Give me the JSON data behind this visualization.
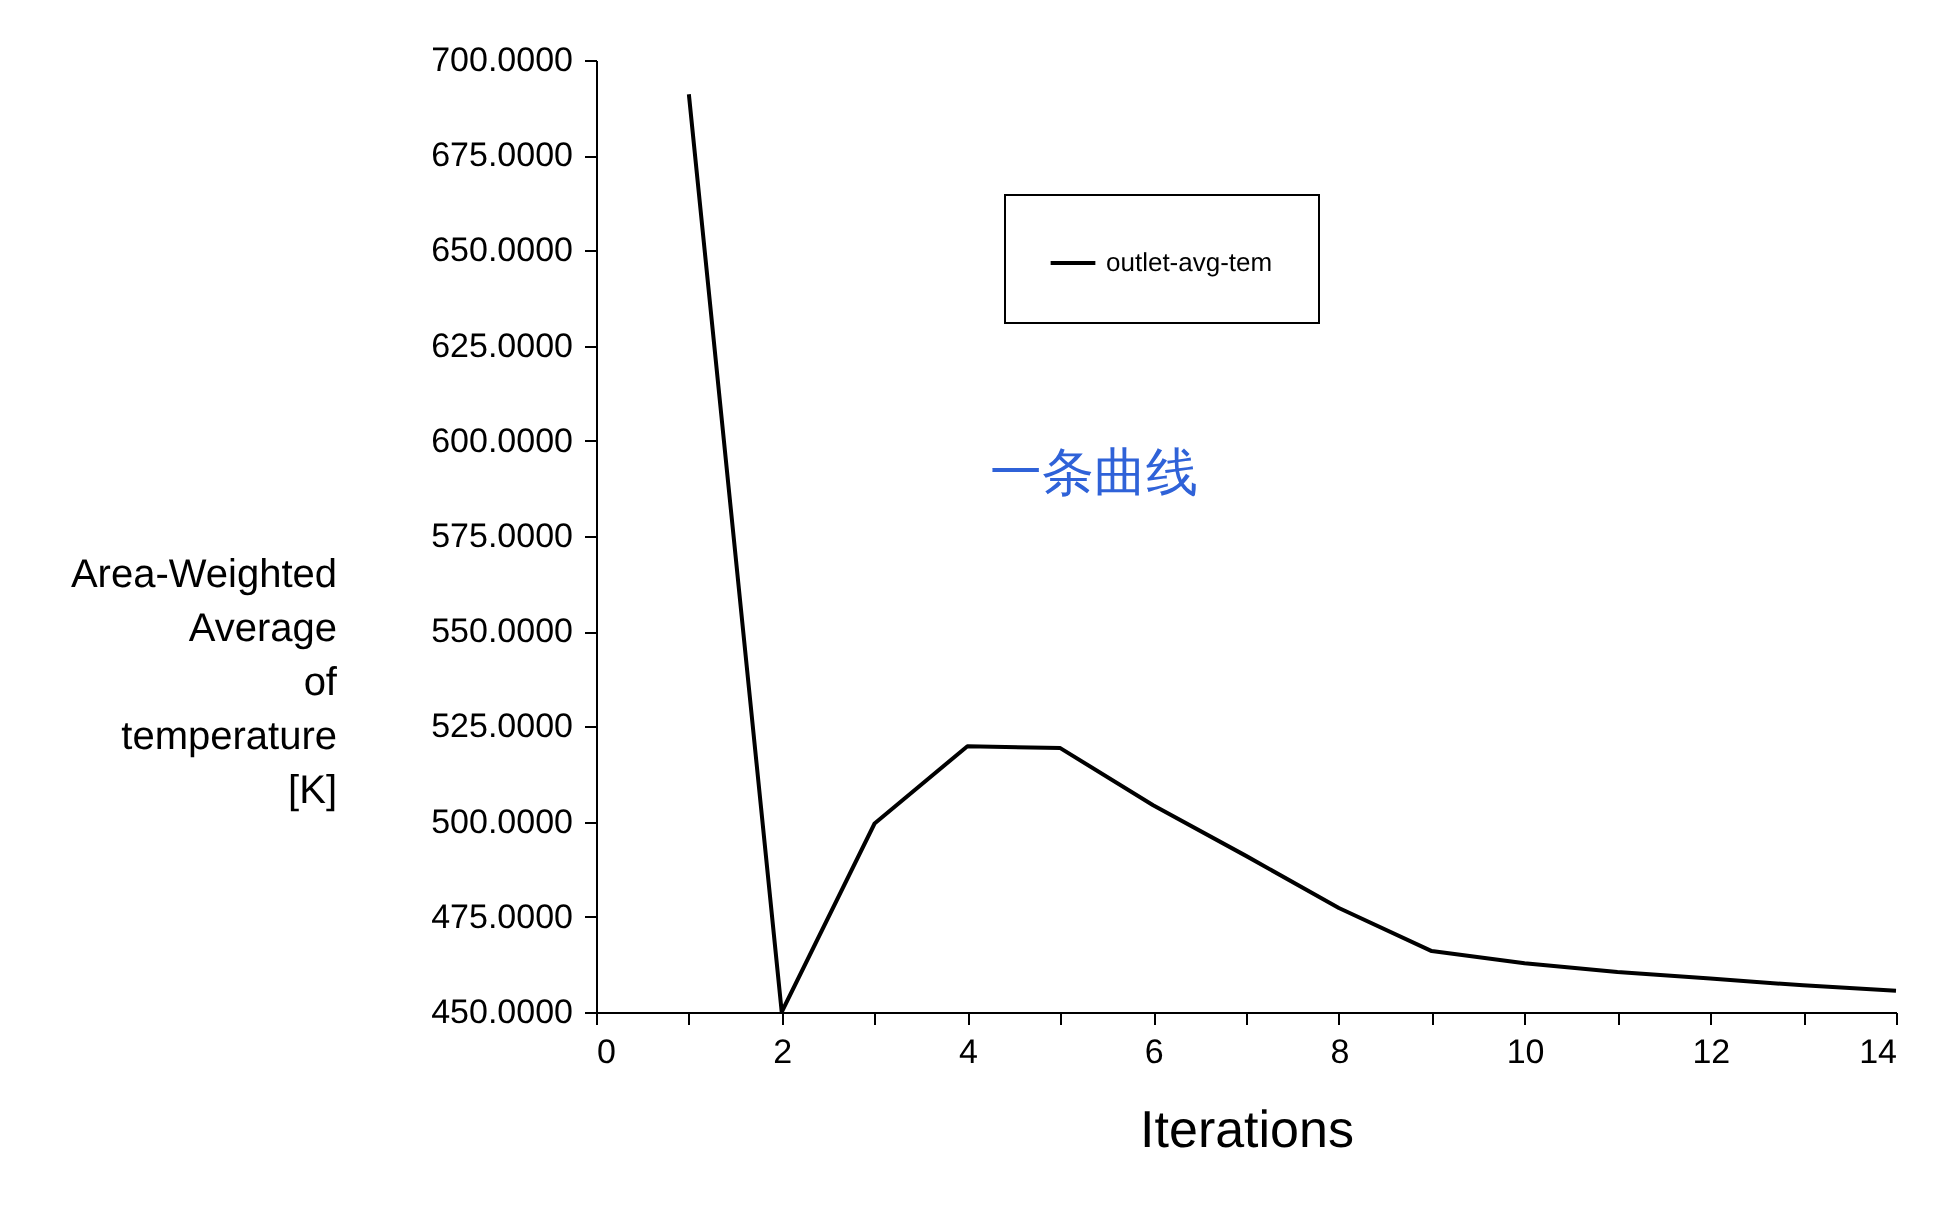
{
  "chart_data": {
    "type": "line",
    "xlabel": "Iterations",
    "ylabel": "Area-Weighted Average of temperature [K]",
    "annotations": [
      "一条曲线"
    ],
    "x": [
      1,
      2,
      3,
      4,
      5,
      6,
      7,
      8,
      9,
      10,
      11,
      12,
      13,
      14
    ],
    "series": [
      {
        "name": "outlet-avg-tem",
        "color": "#000000",
        "values": [
          691,
          450,
          499.5,
          519.8,
          519.3,
          504.3,
          491,
          477.3,
          466,
          462.8,
          460.5,
          458.8,
          457,
          455.6
        ]
      }
    ],
    "xlim": [
      0,
      14
    ],
    "xticks": [
      0,
      {
        "value": 1,
        "label": null
      },
      2,
      {
        "value": 3,
        "label": null
      },
      4,
      {
        "value": 5,
        "label": null
      },
      6,
      {
        "value": 7,
        "label": null
      },
      8,
      {
        "value": 9,
        "label": null
      },
      10,
      {
        "value": 11,
        "label": null
      },
      12,
      {
        "value": 13,
        "label": null
      },
      14
    ],
    "ylim": [
      450,
      700
    ],
    "yticks": [
      {
        "value": 450,
        "label": "450.0000"
      },
      {
        "value": 475,
        "label": "475.0000"
      },
      {
        "value": 500,
        "label": "500.0000"
      },
      {
        "value": 525,
        "label": "525.0000"
      },
      {
        "value": 550,
        "label": "550.0000"
      },
      {
        "value": 575,
        "label": "575.0000"
      },
      {
        "value": 600,
        "label": "600.0000"
      },
      {
        "value": 625,
        "label": "625.0000"
      },
      {
        "value": 650,
        "label": "650.0000"
      },
      {
        "value": 675,
        "label": "675.0000"
      },
      {
        "value": 700,
        "label": "700.0000"
      }
    ],
    "legend": "top",
    "grid": false,
    "marker": "none"
  }
}
